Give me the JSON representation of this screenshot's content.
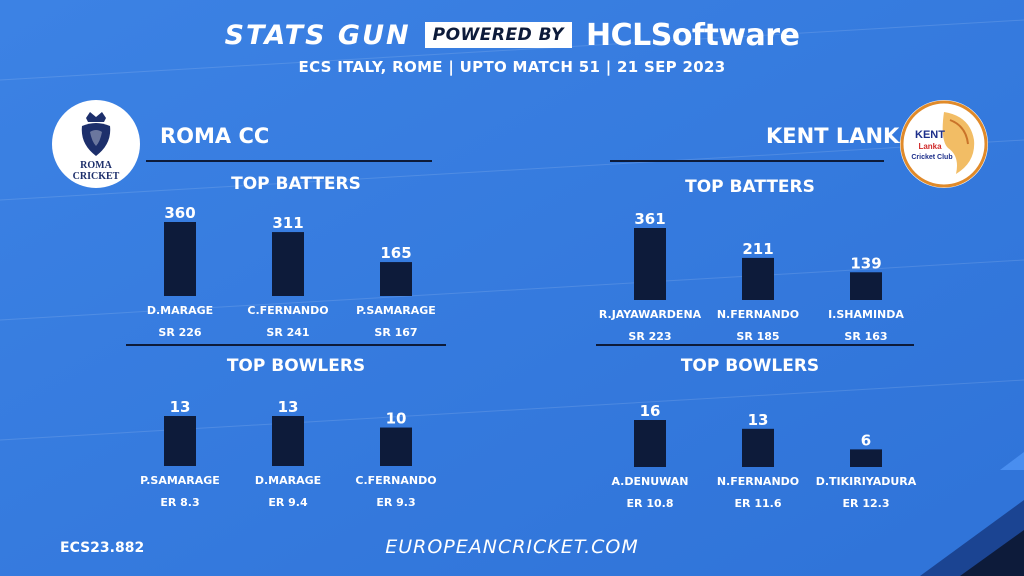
{
  "header": {
    "brand": "STATS GUN",
    "powered_by": "POWERED BY",
    "sponsor": "HCLSoftware",
    "subtitle": "ECS ITALY,  ROME  | UPTO MATCH 51 | 21 SEP 2023"
  },
  "teams": {
    "left": {
      "name": "ROMA CC",
      "logo_text_1": "ROMA",
      "logo_text_2": "CRICKET"
    },
    "right": {
      "name": "KENT LANKA",
      "logo_text_1": "KENT",
      "logo_text_2": "Lanka",
      "logo_text_3": "Cricket Club"
    }
  },
  "footer": {
    "code": "ECS23.882",
    "url": "EUROPEANCRICKET.COM"
  },
  "colors": {
    "background": "#3a7fe0",
    "bar": "#0d1b3a",
    "text": "#ffffff"
  },
  "chart_data": [
    {
      "type": "bar",
      "title": "TOP BATTERS",
      "team": "ROMA CC",
      "categories": [
        "D.MARAGE",
        "C.FERNANDO",
        "P.SAMARAGE"
      ],
      "values": [
        360,
        311,
        165
      ],
      "sublabels": [
        "SR 226",
        "SR 241",
        "SR 167"
      ],
      "ylim": [
        0,
        360
      ]
    },
    {
      "type": "bar",
      "title": "TOP BOWLERS",
      "team": "ROMA CC",
      "categories": [
        "P.SAMARAGE",
        "D.MARAGE",
        "C.FERNANDO"
      ],
      "values": [
        13,
        13,
        10
      ],
      "sublabels": [
        "ER 8.3",
        "ER 9.4",
        "ER 9.3"
      ],
      "ylim": [
        0,
        13
      ]
    },
    {
      "type": "bar",
      "title": "TOP BATTERS",
      "team": "KENT LANKA",
      "categories": [
        "R.JAYAWARDENA",
        "N.FERNANDO",
        "I.SHAMINDA"
      ],
      "values": [
        361,
        211,
        139
      ],
      "sublabels": [
        "SR 223",
        "SR 185",
        "SR 163"
      ],
      "ylim": [
        0,
        361
      ]
    },
    {
      "type": "bar",
      "title": "TOP BOWLERS",
      "team": "KENT LANKA",
      "categories": [
        "A.DENUWAN",
        "N.FERNANDO",
        "D.TIKIRIYADURA"
      ],
      "values": [
        16,
        13,
        6
      ],
      "sublabels": [
        "ER 10.8",
        "ER 11.6",
        "ER 12.3"
      ],
      "ylim": [
        0,
        16
      ]
    }
  ]
}
